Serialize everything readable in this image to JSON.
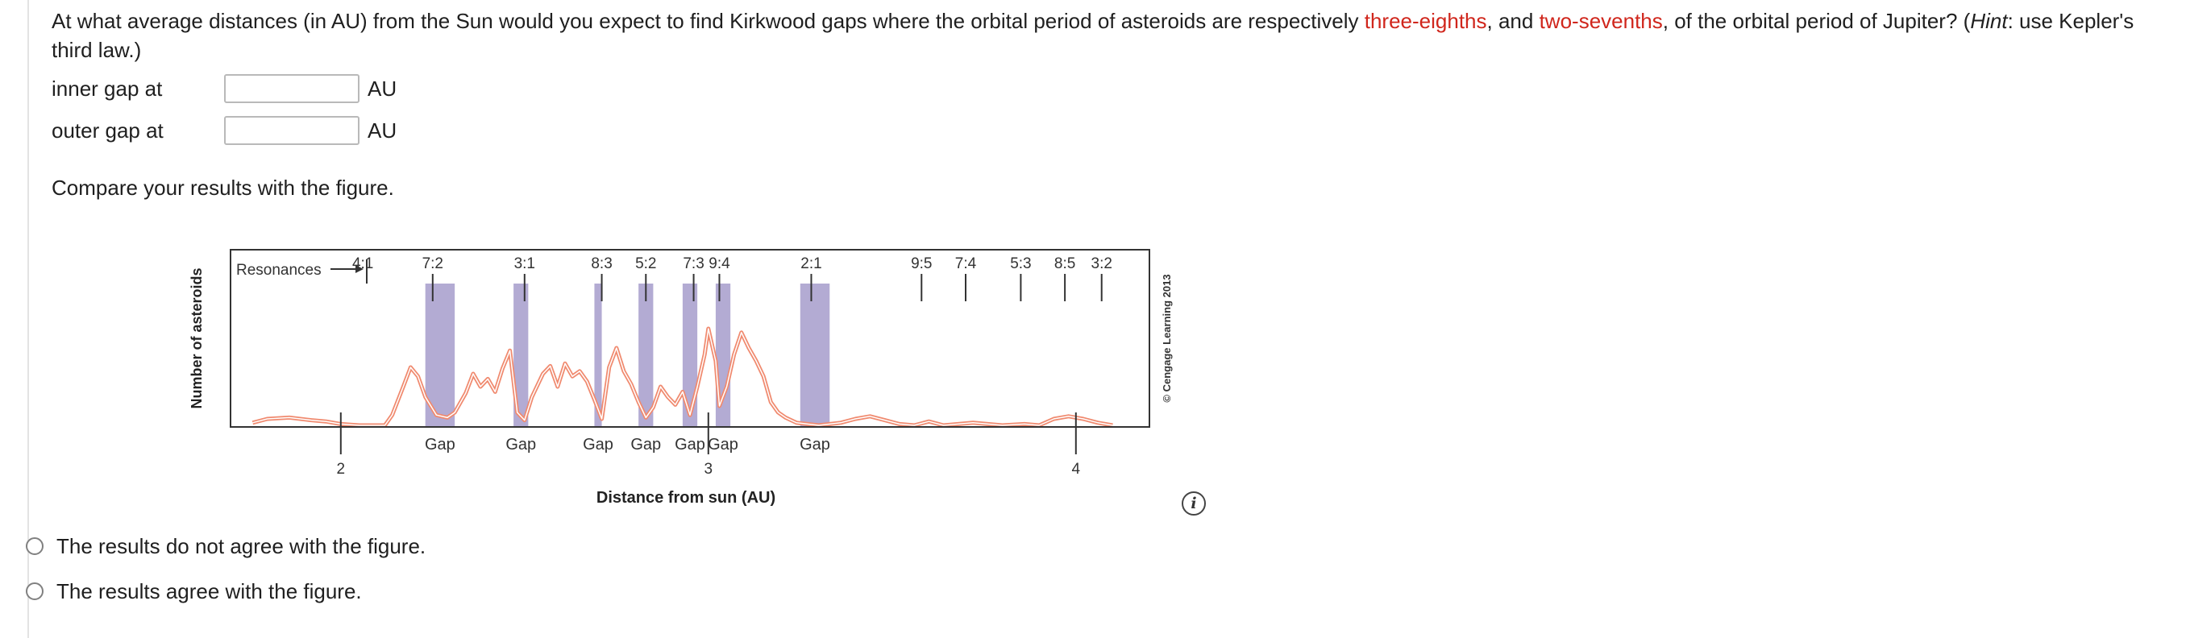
{
  "question": {
    "part1": "At what average distances (in AU) from the Sun would you expect to find Kirkwood gaps where the orbital period of asteroids are respectively ",
    "hl1": "three-eighths",
    "part2": ", and ",
    "hl2": "two-sevenths",
    "part3": ", of the orbital period of Jupiter? (",
    "hint_word": "Hint",
    "part4": ": use Kepler's third law.)",
    "highlight_color": "#d0261c"
  },
  "answers": [
    {
      "label": "inner gap at",
      "value": "",
      "unit": "AU"
    },
    {
      "label": "outer gap at",
      "value": "",
      "unit": "AU"
    }
  ],
  "compare_text": "Compare your results with the figure.",
  "figure": {
    "ylabel": "Number of asteroids",
    "xlabel": "Distance from sun (AU)",
    "x_ticks": [
      "2",
      "3",
      "4"
    ],
    "resonances_label": "Resonances",
    "resonances": [
      {
        "label": "4:1",
        "au": 2.06
      },
      {
        "label": "7:2",
        "au": 2.25
      },
      {
        "label": "3:1",
        "au": 2.5
      },
      {
        "label": "8:3",
        "au": 2.71
      },
      {
        "label": "5:2",
        "au": 2.83
      },
      {
        "label": "7:3",
        "au": 2.96
      },
      {
        "label": "9:4",
        "au": 3.03
      },
      {
        "label": "2:1",
        "au": 3.28
      },
      {
        "label": "9:5",
        "au": 3.58
      },
      {
        "label": "7:4",
        "au": 3.7
      },
      {
        "label": "5:3",
        "au": 3.85
      },
      {
        "label": "8:5",
        "au": 3.97
      },
      {
        "label": "3:2",
        "au": 3.98
      }
    ],
    "gaps": [
      {
        "label": "Gap",
        "from": 2.23,
        "to": 2.31
      },
      {
        "label": "Gap",
        "from": 2.47,
        "to": 2.51
      },
      {
        "label": "Gap",
        "from": 2.69,
        "to": 2.71
      },
      {
        "label": "Gap",
        "from": 2.81,
        "to": 2.85
      },
      {
        "label": "Gap",
        "from": 2.93,
        "to": 2.97
      },
      {
        "label": "Gap",
        "from": 3.02,
        "to": 3.06
      },
      {
        "label": "Gap",
        "from": 3.25,
        "to": 3.33
      }
    ],
    "copyright": "© Cengage Learning 2013",
    "gap_color": "#b3abd3",
    "curve_color": "#f08a6f"
  },
  "choices": [
    {
      "label": "The results do not agree with the figure."
    },
    {
      "label": "The results agree with the figure."
    }
  ]
}
